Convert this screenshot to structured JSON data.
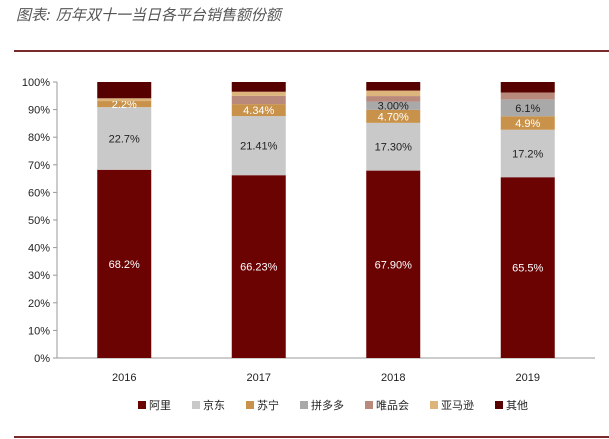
{
  "chart_data": {
    "type": "bar",
    "stacked": true,
    "title": "图表: 历年双十一当日各平台销售额份额",
    "categories": [
      "2016",
      "2017",
      "2018",
      "2019"
    ],
    "ylim": [
      0,
      100
    ],
    "yticks": [
      "0%",
      "10%",
      "20%",
      "30%",
      "40%",
      "50%",
      "60%",
      "70%",
      "80%",
      "90%",
      "100%"
    ],
    "grid": false,
    "legend": "bottom",
    "series": [
      {
        "name": "阿里",
        "color": "#6B0303",
        "values": [
          68.2,
          66.23,
          67.9,
          65.5
        ],
        "labels": [
          "68.2%",
          "66.23%",
          "67.90%",
          "65.5%"
        ],
        "label_color": "#ffffff"
      },
      {
        "name": "京东",
        "color": "#C9C9C9",
        "values": [
          22.7,
          21.41,
          17.3,
          17.2
        ],
        "labels": [
          "22.7%",
          "21.41%",
          "17.30%",
          "17.2%"
        ],
        "label_color": "#222222"
      },
      {
        "name": "苏宁",
        "color": "#C8924A",
        "values": [
          2.2,
          4.34,
          4.7,
          4.9
        ],
        "labels": [
          "2.2%",
          "4.34%",
          "4.70%",
          "4.9%"
        ],
        "label_color": "#ffffff"
      },
      {
        "name": "拼多多",
        "color": "#A9A9A9",
        "values": [
          0,
          0,
          3.0,
          6.1
        ],
        "labels": [
          "",
          "",
          "3.00%",
          "6.1%"
        ],
        "label_color": "#222222"
      },
      {
        "name": "唯品会",
        "color": "#B98A7C",
        "values": [
          0,
          3.0,
          2.0,
          2.5
        ],
        "labels": [
          "",
          "",
          "",
          ""
        ],
        "label_color": "#222222"
      },
      {
        "name": "亚马逊",
        "color": "#DDB47C",
        "values": [
          1.0,
          1.5,
          2.0,
          0
        ],
        "labels": [
          "",
          "",
          "",
          ""
        ],
        "label_color": "#222222"
      },
      {
        "name": "其他",
        "color": "#560000",
        "values": [
          5.9,
          3.52,
          3.1,
          3.8
        ],
        "labels": [
          "",
          "",
          "",
          ""
        ],
        "label_color": "#ffffff"
      }
    ]
  }
}
